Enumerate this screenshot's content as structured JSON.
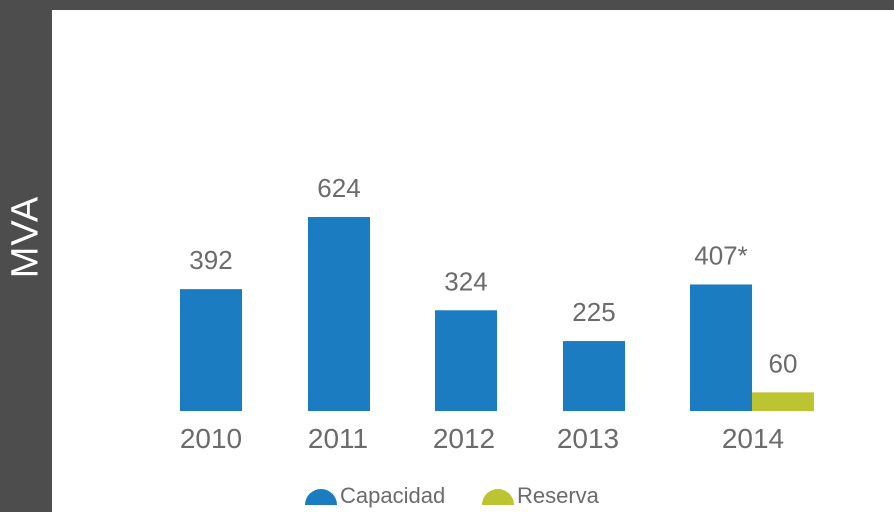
{
  "chart_data": {
    "type": "bar",
    "ylabel": "MVA",
    "categories": [
      "2010",
      "2011",
      "2012",
      "2013",
      "2014"
    ],
    "series": [
      {
        "name": "Capacidad",
        "color": "#1b7cc1",
        "values": [
          392,
          624,
          324,
          225,
          407
        ],
        "labels": [
          "392",
          "624",
          "324",
          "225",
          "407*"
        ]
      },
      {
        "name": "Reserva",
        "color": "#bdc431",
        "values": [
          null,
          null,
          null,
          null,
          60
        ],
        "labels": [
          "",
          "",
          "",
          "",
          "60"
        ]
      }
    ],
    "ylim": [
      0,
      1000
    ],
    "grid": false,
    "legend": "bottom-center"
  }
}
